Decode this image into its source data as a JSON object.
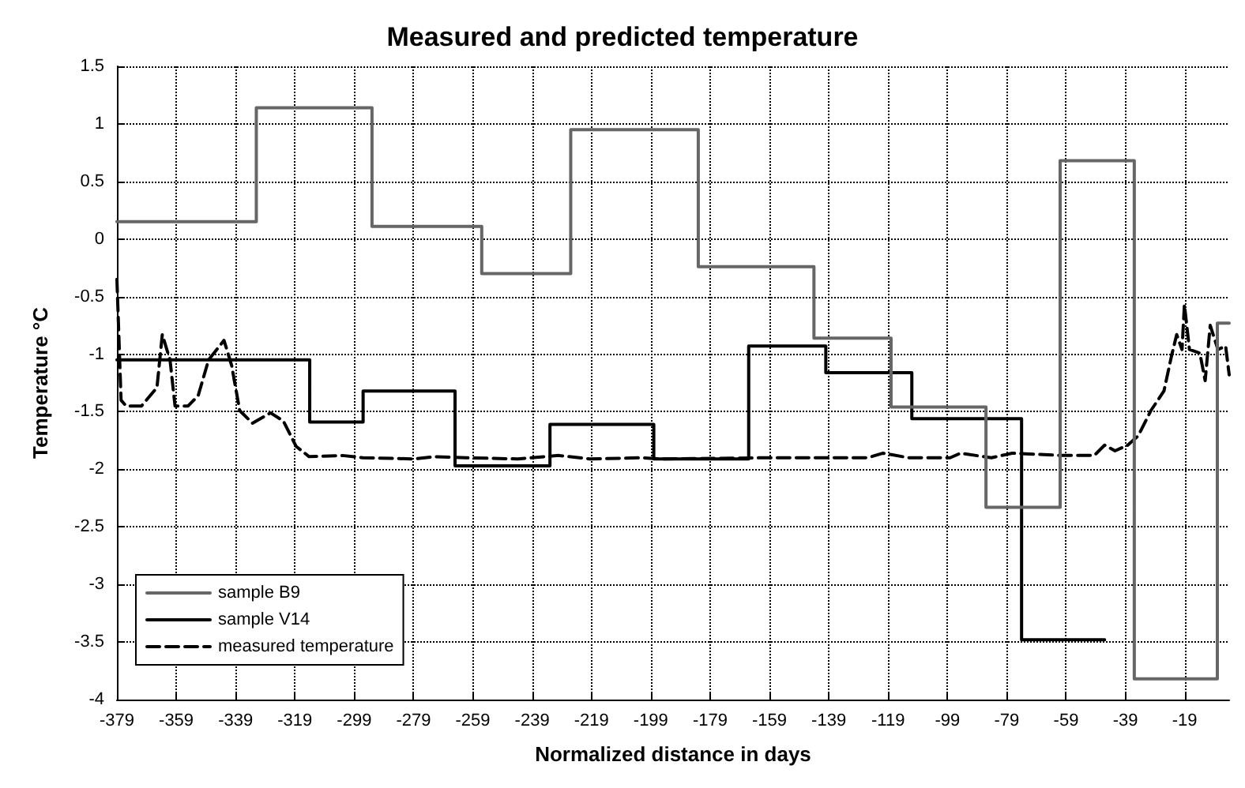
{
  "chart_data": {
    "type": "line",
    "title": "Measured and predicted temperature",
    "xlabel": "Normalized distance in days",
    "ylabel": "Temperature °C",
    "xlim": [
      -379,
      -4
    ],
    "xticks": [
      -379,
      -359,
      -339,
      -319,
      -299,
      -279,
      -259,
      -239,
      -219,
      -199,
      -179,
      -159,
      -139,
      -119,
      -99,
      -79,
      -59,
      -39,
      -19
    ],
    "ylim": [
      -4,
      1.5
    ],
    "yticks": [
      -4,
      -3.5,
      -3,
      -2.5,
      -2,
      -1.5,
      -1,
      -0.5,
      0,
      0.5,
      1,
      1.5
    ],
    "grid": true,
    "legend": "bottom left",
    "marker": "none",
    "series": [
      {
        "name": "sample B9",
        "type": "step",
        "color": "#666666",
        "line_style": "solid",
        "x": [
          -379,
          -332,
          -293,
          -256,
          -226,
          -183,
          -144,
          -118,
          -86,
          -61,
          -36,
          -8,
          -4
        ],
        "values": [
          0.15,
          1.14,
          0.11,
          -0.3,
          0.95,
          -0.24,
          -0.86,
          -1.46,
          -2.33,
          0.68,
          -3.82,
          -0.73,
          -0.73
        ]
      },
      {
        "name": "sample V14",
        "type": "step",
        "color": "#000000",
        "line_style": "solid",
        "x": [
          -379,
          -314,
          -296,
          -265,
          -233,
          -198,
          -166,
          -140,
          -111,
          -74,
          -46
        ],
        "values": [
          -1.05,
          -1.59,
          -1.32,
          -1.97,
          -1.61,
          -1.91,
          -0.93,
          -1.16,
          -1.56,
          -3.48,
          -3.48
        ]
      },
      {
        "name": "measured temperature",
        "type": "line",
        "color": "#000000",
        "line_style": "dashed",
        "x": [
          -379,
          -377.6,
          -375.9,
          -370.7,
          -365.5,
          -363.7,
          -361.1,
          -359.4,
          -355,
          -351.6,
          -348.1,
          -342.9,
          -340.3,
          -337.6,
          -333.3,
          -327.2,
          -322.9,
          -318.6,
          -314.2,
          -303,
          -296,
          -278.6,
          -271.7,
          -261.3,
          -243.9,
          -230,
          -219.6,
          -202.2,
          -195.3,
          -160.6,
          -125.9,
          -120.7,
          -112,
          -98.1,
          -94.6,
          -84.2,
          -77.2,
          -60.1,
          -49.5,
          -46,
          -42.5,
          -38.2,
          -34.7,
          -30.4,
          -26,
          -23.4,
          -21.7,
          -19.9,
          -19.1,
          -17.4,
          -13.9,
          -12.1,
          -10.4,
          -7.8,
          -5.2,
          -4
        ],
        "values": [
          -0.35,
          -1.4,
          -1.45,
          -1.45,
          -1.29,
          -0.83,
          -1.05,
          -1.45,
          -1.45,
          -1.36,
          -1.05,
          -0.88,
          -1.1,
          -1.49,
          -1.6,
          -1.51,
          -1.58,
          -1.8,
          -1.89,
          -1.88,
          -1.9,
          -1.91,
          -1.89,
          -1.9,
          -1.91,
          -1.88,
          -1.91,
          -1.9,
          -1.91,
          -1.9,
          -1.9,
          -1.86,
          -1.9,
          -1.9,
          -1.86,
          -1.9,
          -1.86,
          -1.88,
          -1.88,
          -1.79,
          -1.84,
          -1.79,
          -1.71,
          -1.49,
          -1.32,
          -1.01,
          -0.83,
          -0.96,
          -0.57,
          -0.96,
          -0.99,
          -1.23,
          -0.75,
          -0.96,
          -0.93,
          -1.18
        ]
      }
    ]
  }
}
